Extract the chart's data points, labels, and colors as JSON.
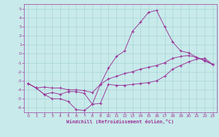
{
  "xlabel": "Windchill (Refroidissement éolien,°C)",
  "xlim": [
    -0.5,
    23.5
  ],
  "ylim": [
    -6.5,
    5.5
  ],
  "yticks": [
    -6,
    -5,
    -4,
    -3,
    -2,
    -1,
    0,
    1,
    2,
    3,
    4,
    5
  ],
  "xticks": [
    0,
    1,
    2,
    3,
    4,
    5,
    6,
    7,
    8,
    9,
    10,
    11,
    12,
    13,
    14,
    15,
    16,
    17,
    18,
    19,
    20,
    21,
    22,
    23
  ],
  "bg_color": "#c8eaea",
  "grid_color": "#9dcfcf",
  "line_color": "#993399",
  "line1_y": [
    -3.3,
    -3.8,
    -4.5,
    -5.0,
    -5.0,
    -5.3,
    -6.2,
    -6.3,
    -5.6,
    -5.5,
    -3.4,
    -3.5,
    -3.5,
    -3.4,
    -3.3,
    -3.2,
    -3.0,
    -2.5,
    -1.7,
    -1.3,
    -0.9,
    -0.6,
    -0.5,
    -1.2
  ],
  "line2_y": [
    -3.3,
    -3.8,
    -3.7,
    -3.8,
    -3.8,
    -4.0,
    -4.0,
    -4.1,
    -4.3,
    -3.4,
    -2.8,
    -2.5,
    -2.2,
    -2.0,
    -1.7,
    -1.5,
    -1.3,
    -1.0,
    -0.5,
    -0.3,
    -0.2,
    -0.4,
    -0.8,
    -1.2
  ],
  "line3_y": [
    -3.3,
    -3.8,
    -4.5,
    -4.3,
    -4.5,
    -4.2,
    -4.2,
    -4.4,
    -5.6,
    -3.4,
    -1.6,
    -0.3,
    0.3,
    2.5,
    3.5,
    4.6,
    4.8,
    3.0,
    1.3,
    0.3,
    0.1,
    -0.4,
    -0.7,
    -1.2
  ]
}
